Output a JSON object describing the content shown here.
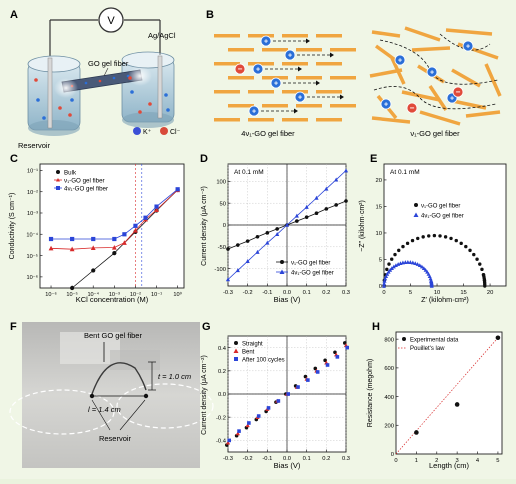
{
  "panels": {
    "A": {
      "letter": "A",
      "meter": "V",
      "fiber_label": "GO gel fiber",
      "electrode_label": "Ag/AgCl",
      "reservoir_label": "Reservoir",
      "legend_k": "K⁺",
      "legend_cl": "Cl⁻"
    },
    "B": {
      "letter": "B",
      "left_caption": "4ν₁-GO gel fiber",
      "right_caption": "ν₁-GO gel fiber",
      "plus": "+",
      "minus": "−"
    },
    "C": {
      "letter": "C",
      "ylabel": "Conductivity (S cm⁻¹)",
      "xlabel": "KCl concentration (M)",
      "xticks": [
        "10⁻⁶",
        "10⁻⁵",
        "10⁻⁴",
        "10⁻³",
        "10⁻²",
        "10⁻¹",
        "10⁰"
      ],
      "yticks": [
        "10⁻¹",
        "10⁻²",
        "10⁻³",
        "10⁻⁴",
        "10⁻⁵",
        "10⁻⁶"
      ],
      "legend": [
        "Bulk",
        "ν₁-GO gel fiber",
        "4ν₁-GO gel fiber"
      ]
    },
    "D": {
      "letter": "D",
      "annotation": "At 0.1 mM",
      "ylabel": "Current density (μA cm⁻²)",
      "xlabel": "Bias (V)",
      "xticks": [
        "-0.3",
        "-0.2",
        "-0.1",
        "0.0",
        "0.1",
        "0.2",
        "0.3"
      ],
      "yticks": [
        "100",
        "50",
        "0",
        "-50",
        "-100"
      ],
      "legend": [
        "ν₁-GO gel fiber",
        "4ν₁-GO gel fiber"
      ]
    },
    "E": {
      "letter": "E",
      "annotation": "At 0.1 mM",
      "ylabel": "−Z″ (kilohm·cm²)",
      "xlabel": "Z′ (kilohm·cm²)",
      "xticks": [
        "0",
        "5",
        "10",
        "15",
        "20"
      ],
      "yticks": [
        "20",
        "15",
        "10",
        "5",
        "0"
      ],
      "legend": [
        "ν₁-GO gel fiber",
        "4ν₁-GO gel fiber"
      ]
    },
    "F": {
      "letter": "F",
      "fiber_label": "Bent GO gel fiber",
      "t_label": "t = 1.0 cm",
      "l_label": "l = 1.4 cm",
      "reservoir_label": "Reservoir"
    },
    "G": {
      "letter": "G",
      "ylabel": "Current density (μA cm⁻²)",
      "xlabel": "Bias (V)",
      "xticks": [
        "-0.3",
        "-0.2",
        "-0.1",
        "0.0",
        "0.1",
        "0.2",
        "0.3"
      ],
      "yticks": [
        "0.4",
        "0.2",
        "0.0",
        "-0.2",
        "-0.4"
      ],
      "legend": [
        "Straight",
        "Bent",
        "After 100 cycles"
      ]
    },
    "H": {
      "letter": "H",
      "ylabel": "Resistance (megohm)",
      "xlabel": "Length (cm)",
      "xticks": [
        "0",
        "1",
        "2",
        "3",
        "4",
        "5"
      ],
      "yticks": [
        "800",
        "600",
        "400",
        "200",
        "0"
      ],
      "legend": [
        "Experimental data",
        "Pouillet's law"
      ]
    }
  },
  "colors": {
    "black": "#111111",
    "red": "#d82a2a",
    "blue": "#2b45d8",
    "fiber_orange": "#f0a540",
    "ion_blue": "#2b6fd8",
    "ion_red": "#e04a3a",
    "background": "#f0f6e6"
  },
  "chart_data": [
    {
      "panel": "C",
      "type": "scatter",
      "x_scale": "log",
      "y_scale": "log",
      "xlim": [
        3e-07,
        2
      ],
      "ylim": [
        3e-07,
        0.2
      ],
      "series": [
        {
          "name": "Bulk",
          "color": "black",
          "x": [
            1e-05,
            0.0001,
            0.001,
            0.01,
            0.1,
            1
          ],
          "y": [
            3e-07,
            2e-06,
            1.3e-05,
            0.00013,
            0.0013,
            0.012
          ]
        },
        {
          "name": "ν₁-GO gel fiber",
          "color": "red",
          "x": [
            1e-06,
            1e-05,
            0.0001,
            0.001,
            0.003,
            0.01,
            0.03,
            0.1,
            1
          ],
          "y": [
            2.2e-05,
            2e-05,
            2.3e-05,
            2.4e-05,
            4e-05,
            0.00015,
            0.0005,
            0.0014,
            0.012
          ]
        },
        {
          "name": "4ν₁-GO gel fiber",
          "color": "blue",
          "x": [
            1e-06,
            1e-05,
            0.0001,
            0.001,
            0.003,
            0.01,
            0.03,
            0.1,
            1
          ],
          "y": [
            6e-05,
            6e-05,
            6e-05,
            6e-05,
            0.0001,
            0.00025,
            0.0006,
            0.002,
            0.013
          ]
        }
      ]
    },
    {
      "panel": "D",
      "type": "line",
      "xlim": [
        -0.3,
        0.3
      ],
      "ylim": [
        -140,
        140
      ],
      "series": [
        {
          "name": "ν₁-GO gel fiber",
          "color": "black",
          "x": [
            -0.3,
            -0.25,
            -0.2,
            -0.15,
            -0.1,
            -0.05,
            0,
            0.05,
            0.1,
            0.15,
            0.2,
            0.25,
            0.3
          ],
          "y": [
            -55,
            -46,
            -37,
            -27,
            -18,
            -9,
            0,
            9,
            18,
            27,
            37,
            46,
            55
          ]
        },
        {
          "name": "4ν₁-GO gel fiber",
          "color": "blue",
          "x": [
            -0.3,
            -0.25,
            -0.2,
            -0.15,
            -0.1,
            -0.05,
            0,
            0.05,
            0.1,
            0.15,
            0.2,
            0.25,
            0.3
          ],
          "y": [
            -125,
            -104,
            -83,
            -62,
            -41,
            -21,
            0,
            21,
            41,
            62,
            83,
            104,
            125
          ]
        }
      ]
    },
    {
      "panel": "E",
      "type": "scatter",
      "xlim": [
        0,
        23
      ],
      "ylim": [
        0,
        23
      ],
      "series": [
        {
          "name": "ν₁-GO gel fiber",
          "color": "black",
          "semicircle": {
            "center": 9.5,
            "radius": 9.5
          }
        },
        {
          "name": "4ν₁-GO gel fiber",
          "color": "blue",
          "semicircle": {
            "center": 4.5,
            "radius": 4.5
          }
        }
      ]
    },
    {
      "panel": "G",
      "type": "scatter",
      "xlim": [
        -0.3,
        0.3
      ],
      "ylim": [
        -0.5,
        0.5
      ],
      "series": [
        {
          "name": "Straight",
          "color": "black",
          "x": [
            -0.3,
            -0.25,
            -0.2,
            -0.15,
            -0.1,
            -0.05,
            0,
            0.05,
            0.1,
            0.15,
            0.2,
            0.25,
            0.3
          ],
          "y": [
            -0.44,
            -0.36,
            -0.29,
            -0.22,
            -0.15,
            -0.07,
            0,
            0.07,
            0.15,
            0.22,
            0.29,
            0.36,
            0.44
          ]
        },
        {
          "name": "Bent",
          "color": "red",
          "x": [
            -0.3,
            -0.25,
            -0.2,
            -0.15,
            -0.1,
            -0.05,
            0,
            0.05,
            0.1,
            0.15,
            0.2,
            0.25,
            0.3
          ],
          "y": [
            -0.42,
            -0.34,
            -0.27,
            -0.2,
            -0.13,
            -0.06,
            0,
            0.06,
            0.13,
            0.2,
            0.27,
            0.34,
            0.42
          ]
        },
        {
          "name": "After 100 cycles",
          "color": "blue",
          "x": [
            -0.3,
            -0.25,
            -0.2,
            -0.15,
            -0.1,
            -0.05,
            0,
            0.05,
            0.1,
            0.15,
            0.2,
            0.25,
            0.3
          ],
          "y": [
            -0.4,
            -0.32,
            -0.25,
            -0.19,
            -0.12,
            -0.06,
            0,
            0.06,
            0.12,
            0.19,
            0.25,
            0.32,
            0.4
          ]
        }
      ]
    },
    {
      "panel": "H",
      "type": "scatter",
      "xlim": [
        0,
        5.2
      ],
      "ylim": [
        0,
        850
      ],
      "series": [
        {
          "name": "Experimental data",
          "color": "black",
          "x": [
            1,
            3,
            5
          ],
          "y": [
            150,
            345,
            810
          ]
        },
        {
          "name": "Pouillet's law",
          "color": "red",
          "line": true,
          "x": [
            0,
            5
          ],
          "y": [
            0,
            810
          ]
        }
      ]
    }
  ]
}
